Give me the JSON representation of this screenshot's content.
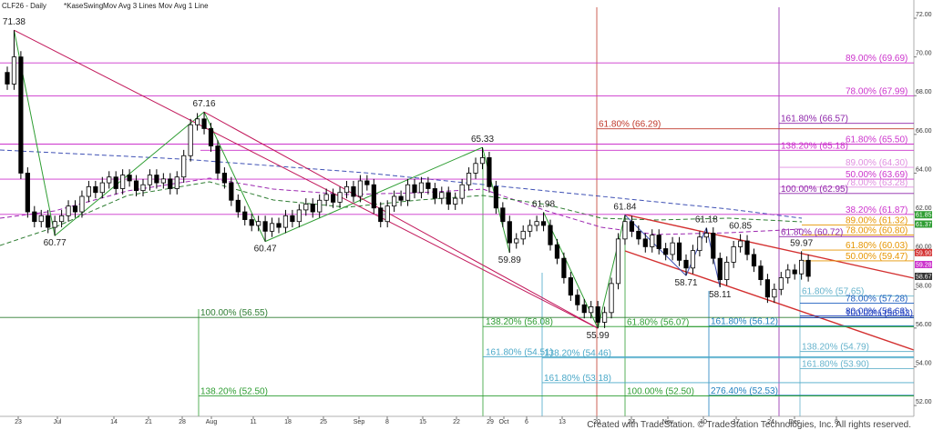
{
  "chart_data": {
    "type": "candlestick",
    "title": "CLF26 - Daily",
    "indicators": [
      "*KaseSwing",
      "Mov Avg 3 Lines",
      "Mov Avg 1 Line"
    ],
    "footer": "Created with TradeStation. © TradeStation Technologies, Inc. All rights reserved.",
    "categories": [
      "23",
      "Jul",
      "14",
      "21",
      "28",
      "Aug",
      "11",
      "18",
      "25",
      "Sep",
      "8",
      "15",
      "22",
      "29",
      "Oct",
      "6",
      "13",
      "20",
      "27",
      "Nov",
      "10",
      "17",
      "24",
      "Dec",
      "8"
    ],
    "ylim": [
      51.44,
      72.94
    ],
    "yticks": [
      {
        "value": 72,
        "label": "72.00"
      },
      {
        "value": 70,
        "label": "70.00"
      },
      {
        "value": 68,
        "label": "68.00"
      },
      {
        "value": 66,
        "label": "66.00"
      },
      {
        "value": 64,
        "label": "64.00"
      },
      {
        "value": 62,
        "label": "62.00"
      },
      {
        "value": 60,
        "label": "60.00"
      },
      {
        "value": 58,
        "label": "58.00"
      },
      {
        "value": 56,
        "label": "56.00"
      },
      {
        "value": 54,
        "label": "54.00"
      },
      {
        "value": 52,
        "label": "52.00"
      }
    ],
    "up_color": "#ffffff",
    "down_color": "#000000",
    "candles": [
      [
        69.2,
        69.5,
        68.3,
        68.6
      ],
      [
        68.6,
        71.38,
        68.3,
        70.0
      ],
      [
        70.0,
        70.3,
        63.7,
        64.0
      ],
      [
        64.0,
        64.3,
        61.7,
        62.0
      ],
      [
        62.0,
        62.3,
        61.2,
        61.5
      ],
      [
        61.5,
        62.1,
        61.2,
        61.8
      ],
      [
        61.8,
        62.1,
        60.9,
        61.2
      ],
      [
        61.2,
        61.8,
        60.77,
        61.5
      ],
      [
        61.5,
        62.1,
        61.2,
        61.8
      ],
      [
        61.8,
        62.6,
        61.5,
        62.3
      ],
      [
        62.3,
        62.6,
        61.7,
        62.0
      ],
      [
        62.0,
        63.1,
        61.7,
        62.8
      ],
      [
        62.8,
        63.6,
        62.5,
        63.3
      ],
      [
        63.3,
        63.6,
        62.7,
        63.0
      ],
      [
        63.0,
        63.8,
        62.7,
        63.5
      ],
      [
        63.5,
        64.1,
        63.2,
        63.8
      ],
      [
        63.8,
        64.1,
        62.9,
        63.2
      ],
      [
        63.2,
        64.2,
        62.9,
        63.9
      ],
      [
        63.9,
        64.2,
        63.3,
        63.6
      ],
      [
        63.6,
        63.9,
        62.8,
        63.1
      ],
      [
        63.1,
        63.7,
        62.8,
        63.4
      ],
      [
        63.4,
        64.2,
        63.1,
        63.9
      ],
      [
        63.9,
        64.2,
        63.2,
        63.5
      ],
      [
        63.5,
        64.0,
        63.2,
        63.7
      ],
      [
        63.7,
        64.0,
        62.9,
        63.2
      ],
      [
        63.2,
        64.1,
        62.9,
        63.8
      ],
      [
        63.8,
        65.2,
        63.5,
        64.9
      ],
      [
        64.9,
        66.8,
        64.6,
        66.5
      ],
      [
        66.5,
        67.1,
        66.2,
        66.8
      ],
      [
        66.8,
        67.16,
        66.0,
        66.3
      ],
      [
        66.3,
        66.6,
        65.1,
        65.4
      ],
      [
        65.4,
        65.7,
        63.7,
        64.0
      ],
      [
        64.0,
        64.3,
        63.2,
        63.5
      ],
      [
        63.5,
        63.8,
        62.3,
        62.6
      ],
      [
        62.6,
        62.9,
        61.7,
        62.0
      ],
      [
        62.0,
        62.3,
        61.3,
        61.6
      ],
      [
        61.6,
        61.9,
        61.0,
        61.3
      ],
      [
        61.3,
        61.8,
        61.0,
        61.5
      ],
      [
        61.5,
        61.8,
        60.47,
        61.0
      ],
      [
        61.0,
        61.7,
        60.7,
        61.4
      ],
      [
        61.4,
        61.7,
        60.9,
        61.2
      ],
      [
        61.2,
        62.1,
        60.9,
        61.8
      ],
      [
        61.8,
        62.1,
        61.2,
        61.5
      ],
      [
        61.5,
        62.4,
        61.2,
        62.1
      ],
      [
        62.1,
        62.7,
        61.8,
        62.4
      ],
      [
        62.4,
        62.7,
        61.7,
        62.0
      ],
      [
        62.0,
        62.9,
        61.7,
        62.6
      ],
      [
        62.6,
        63.2,
        62.3,
        62.9
      ],
      [
        62.9,
        63.2,
        62.2,
        62.5
      ],
      [
        62.5,
        63.3,
        62.2,
        63.0
      ],
      [
        63.0,
        63.6,
        62.7,
        63.3
      ],
      [
        63.3,
        63.6,
        62.5,
        62.8
      ],
      [
        62.8,
        63.9,
        62.5,
        63.6
      ],
      [
        63.6,
        63.9,
        63.1,
        63.4
      ],
      [
        63.4,
        63.7,
        61.9,
        62.2
      ],
      [
        62.2,
        62.5,
        61.2,
        61.5
      ],
      [
        61.5,
        62.6,
        61.2,
        62.3
      ],
      [
        62.3,
        63.1,
        62.0,
        62.8
      ],
      [
        62.8,
        63.1,
        62.3,
        62.6
      ],
      [
        62.6,
        63.7,
        62.3,
        63.4
      ],
      [
        63.4,
        63.7,
        62.7,
        63.0
      ],
      [
        63.0,
        63.8,
        62.7,
        63.5
      ],
      [
        63.5,
        63.8,
        62.9,
        63.2
      ],
      [
        63.2,
        63.5,
        62.4,
        62.7
      ],
      [
        62.7,
        63.3,
        62.4,
        63.0
      ],
      [
        63.0,
        63.3,
        62.1,
        62.4
      ],
      [
        62.4,
        63.0,
        62.1,
        62.7
      ],
      [
        62.7,
        63.7,
        62.4,
        63.4
      ],
      [
        63.4,
        64.3,
        63.1,
        64.0
      ],
      [
        64.0,
        64.8,
        63.7,
        64.5
      ],
      [
        64.5,
        65.33,
        64.2,
        64.8
      ],
      [
        64.8,
        65.1,
        63.0,
        63.3
      ],
      [
        63.3,
        63.6,
        61.9,
        62.2
      ],
      [
        62.2,
        62.5,
        61.2,
        61.5
      ],
      [
        61.5,
        61.8,
        59.89,
        60.4
      ],
      [
        60.4,
        60.9,
        60.1,
        60.6
      ],
      [
        60.6,
        61.3,
        60.3,
        61.0
      ],
      [
        61.0,
        61.6,
        60.7,
        61.3
      ],
      [
        61.3,
        61.8,
        61.0,
        61.5
      ],
      [
        61.5,
        61.98,
        61.0,
        61.3
      ],
      [
        61.3,
        61.6,
        60.0,
        60.3
      ],
      [
        60.3,
        60.6,
        59.3,
        59.6
      ],
      [
        59.6,
        59.9,
        58.3,
        58.6
      ],
      [
        58.6,
        58.9,
        57.4,
        57.7
      ],
      [
        57.7,
        58.0,
        56.9,
        57.2
      ],
      [
        57.2,
        57.5,
        56.5,
        56.8
      ],
      [
        56.8,
        57.4,
        56.5,
        57.1
      ],
      [
        57.1,
        57.4,
        55.99,
        56.3
      ],
      [
        56.3,
        57.1,
        56.0,
        56.8
      ],
      [
        56.8,
        58.6,
        56.5,
        58.3
      ],
      [
        58.3,
        60.9,
        58.0,
        60.6
      ],
      [
        60.6,
        61.84,
        60.3,
        61.5
      ],
      [
        61.5,
        61.8,
        60.7,
        61.0
      ],
      [
        61.0,
        61.3,
        60.3,
        60.6
      ],
      [
        60.6,
        60.9,
        59.9,
        60.2
      ],
      [
        60.2,
        61.1,
        59.9,
        60.8
      ],
      [
        60.8,
        61.1,
        59.8,
        60.1
      ],
      [
        60.1,
        60.4,
        59.5,
        59.8
      ],
      [
        59.8,
        60.7,
        59.5,
        60.4
      ],
      [
        60.4,
        60.7,
        59.2,
        59.5
      ],
      [
        59.5,
        59.8,
        58.71,
        59.1
      ],
      [
        59.1,
        60.3,
        58.8,
        60.0
      ],
      [
        60.0,
        61.0,
        59.7,
        60.7
      ],
      [
        60.7,
        61.18,
        60.4,
        60.9
      ],
      [
        60.9,
        61.2,
        59.3,
        59.6
      ],
      [
        59.6,
        59.9,
        58.11,
        58.5
      ],
      [
        58.5,
        59.7,
        58.2,
        59.4
      ],
      [
        59.4,
        60.5,
        59.1,
        60.2
      ],
      [
        60.2,
        60.85,
        59.9,
        60.5
      ],
      [
        60.5,
        60.8,
        59.5,
        59.8
      ],
      [
        59.8,
        60.1,
        58.9,
        59.2
      ],
      [
        59.2,
        59.5,
        58.2,
        58.5
      ],
      [
        58.5,
        58.8,
        57.3,
        57.6
      ],
      [
        57.6,
        58.3,
        57.3,
        58.0
      ],
      [
        58.0,
        58.9,
        57.7,
        58.6
      ],
      [
        58.6,
        59.3,
        58.3,
        59.0
      ],
      [
        59.0,
        59.3,
        58.5,
        58.8
      ],
      [
        58.8,
        59.97,
        58.5,
        59.5
      ],
      [
        59.5,
        59.8,
        58.4,
        58.67
      ]
    ],
    "swing_labels": [
      71.38,
      60.77,
      67.16,
      60.47,
      65.33,
      59.89,
      61.98,
      55.99,
      61.84,
      58.71,
      61.18,
      58.11,
      60.85,
      59.97
    ],
    "levels": [
      {
        "label": "89.00% (69.69)",
        "price": 69.69,
        "color": "#cc33cc"
      },
      {
        "label": "78.00% (67.99)",
        "price": 67.99,
        "color": "#cc33cc"
      },
      {
        "label": "61.80% (66.29)",
        "price": 66.29,
        "color": "#c0392b"
      },
      {
        "label": "161.80% (66.57)",
        "price": 66.57,
        "color": "#8e24aa"
      },
      {
        "label": "138.20% (65.18)",
        "price": 65.18,
        "color": "#cc33cc"
      },
      {
        "label": "61.80% (65.50)",
        "price": 65.5,
        "color": "#cc33cc"
      },
      {
        "label": "89.00% (64.30)",
        "price": 64.3,
        "color": "#e08ee0"
      },
      {
        "label": "50.00% (63.69)",
        "price": 63.69,
        "color": "#cc33cc"
      },
      {
        "label": "78.00% (63.28)",
        "price": 63.28,
        "color": "#e08ee0"
      },
      {
        "label": "100.00% (62.95)",
        "price": 62.95,
        "color": "#8e24aa"
      },
      {
        "label": "38.20% (61.87)",
        "price": 61.87,
        "color": "#cc33cc"
      },
      {
        "label": "89.00% (61.32)",
        "price": 61.32,
        "color": "#e69500"
      },
      {
        "label": "78.00% (60.80)",
        "price": 60.8,
        "color": "#e69500"
      },
      {
        "label": "61.80% (60.72)",
        "price": 60.72,
        "color": "#8e24aa"
      },
      {
        "label": "61.80% (60.03)",
        "price": 60.03,
        "color": "#e69500"
      },
      {
        "label": "50.00% (59.47)",
        "price": 59.47,
        "color": "#e69500"
      },
      {
        "label": "61.80% (57.65)",
        "price": 57.65,
        "color": "#66b3cc"
      },
      {
        "label": "78.00% (57.28)",
        "price": 57.28,
        "color": "#1f5fbf"
      },
      {
        "label": "80.00% (56.63)",
        "price": 56.63,
        "color": "#1f3fbf"
      },
      {
        "label": "100.00% (56.55)",
        "price": 56.55,
        "color": "#2e7d32"
      },
      {
        "label": "100.00% (56.53)",
        "price": 56.53,
        "color": "#1f3fbf"
      },
      {
        "label": "138.20% (56.08)",
        "price": 56.08,
        "color": "#2e9d32"
      },
      {
        "label": "61.80% (56.07)",
        "price": 56.07,
        "color": "#2e9d32"
      },
      {
        "label": "161.80% (56.12)",
        "price": 56.12,
        "color": "#1f7fbf"
      },
      {
        "label": "161.80% (54.51)",
        "price": 54.51,
        "color": "#4aa8c8"
      },
      {
        "label": "138.20% (54.46)",
        "price": 54.46,
        "color": "#4aa8c8"
      },
      {
        "label": "138.20% (54.79)",
        "price": 54.79,
        "color": "#66b3cc"
      },
      {
        "label": "161.80% (53.90)",
        "price": 53.9,
        "color": "#66b3cc"
      },
      {
        "label": "161.80% (53.18)",
        "price": 53.18,
        "color": "#4aa8c8"
      },
      {
        "label": "276.40% (52.53)",
        "price": 52.53,
        "color": "#1f7fbf"
      },
      {
        "label": "100.00% (52.50)",
        "price": 52.5,
        "color": "#2e9d32"
      },
      {
        "label": "138.20% (52.50)",
        "price": 52.5,
        "color": "#2e9d32"
      }
    ],
    "price_badges": [
      {
        "value": 61.85,
        "label": "61.85",
        "color": "#2e9d32"
      },
      {
        "value": 61.37,
        "label": "61.37",
        "color": "#2e9d32"
      },
      {
        "value": 59.9,
        "label": "59.90",
        "color": "#d32f2f"
      },
      {
        "value": 59.28,
        "label": "59.28",
        "color": "#cc33cc"
      },
      {
        "value": 58.67,
        "label": "58.67",
        "color": "#333333"
      }
    ]
  }
}
